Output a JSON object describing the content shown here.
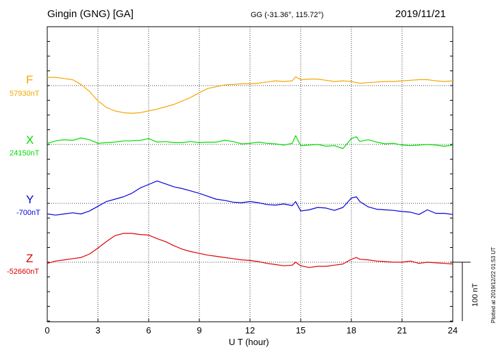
{
  "header": {
    "station": "Gingin (GNG)  [GA]",
    "coords": "GG (-31.36°, 115.72°)",
    "date": "2019/11/21"
  },
  "scale": {
    "label": "100 nT",
    "value_nT": 100
  },
  "plotted": "Plotted at 2019/12/22 01:53 UT",
  "chart_data": {
    "type": "line",
    "xlabel": "U T (hour)",
    "xlim": [
      0,
      24
    ],
    "xticks": [
      0,
      3,
      6,
      9,
      12,
      15,
      18,
      21,
      24
    ],
    "x": [
      0,
      0.5,
      1,
      1.5,
      2,
      2.5,
      3,
      3.5,
      4,
      4.5,
      5,
      5.5,
      6,
      6.5,
      7,
      7.5,
      8,
      8.5,
      9,
      9.5,
      10,
      10.5,
      11,
      11.5,
      12,
      12.5,
      13,
      13.5,
      14,
      14.5,
      14.7,
      15,
      15.5,
      16,
      16.5,
      17,
      17.5,
      18,
      18.3,
      18.5,
      19,
      19.5,
      20,
      20.5,
      21,
      21.5,
      22,
      22.5,
      23,
      23.5,
      24
    ],
    "series": [
      {
        "name": "F",
        "baseline_label": "57930nT",
        "baseline": 57930,
        "color": "#f5a500",
        "values": [
          57944,
          57944,
          57942,
          57940,
          57932,
          57920,
          57904,
          57893,
          57887,
          57884,
          57883,
          57884,
          57887,
          57890,
          57894,
          57898,
          57904,
          57910,
          57918,
          57925,
          57928,
          57931,
          57932,
          57933,
          57933,
          57934,
          57936,
          57938,
          57937,
          57938,
          57945,
          57940,
          57941,
          57941,
          57939,
          57937,
          57938,
          57937,
          57935,
          57934,
          57935,
          57936,
          57937,
          57937,
          57938,
          57939,
          57940,
          57940,
          57938,
          57937,
          57938
        ]
      },
      {
        "name": "X",
        "baseline_label": "24150nT",
        "baseline": 24150,
        "color": "#00dd00",
        "values": [
          24152,
          24156,
          24158,
          24157,
          24161,
          24158,
          24152,
          24153,
          24154,
          24156,
          24156,
          24157,
          24160,
          24154,
          24155,
          24153,
          24153,
          24155,
          24153,
          24154,
          24154,
          24157,
          24155,
          24151,
          24152,
          24154,
          24152,
          24151,
          24149,
          24152,
          24165,
          24148,
          24149,
          24150,
          24147,
          24148,
          24143,
          24160,
          24163,
          24155,
          24158,
          24154,
          24151,
          24152,
          24149,
          24148,
          24149,
          24150,
          24149,
          24147,
          24149
        ]
      },
      {
        "name": "Y",
        "baseline_label": "-700nT",
        "baseline": -700,
        "color": "#0000dd",
        "values": [
          -718,
          -720,
          -718,
          -716,
          -718,
          -713,
          -705,
          -697,
          -693,
          -689,
          -683,
          -674,
          -668,
          -662,
          -667,
          -672,
          -675,
          -679,
          -683,
          -688,
          -693,
          -695,
          -698,
          -699,
          -697,
          -699,
          -702,
          -703,
          -701,
          -704,
          -697,
          -713,
          -711,
          -707,
          -708,
          -712,
          -707,
          -691,
          -689,
          -697,
          -706,
          -710,
          -711,
          -712,
          -714,
          -715,
          -719,
          -711,
          -717,
          -717,
          -719
        ]
      },
      {
        "name": "Z",
        "baseline_label": "-52660nT",
        "baseline": -52660,
        "color": "#dd0000",
        "values": [
          -52662,
          -52658,
          -52656,
          -52654,
          -52652,
          -52646,
          -52636,
          -52625,
          -52615,
          -52611,
          -52611,
          -52613,
          -52614,
          -52620,
          -52625,
          -52632,
          -52638,
          -52642,
          -52645,
          -52648,
          -52650,
          -52652,
          -52654,
          -52656,
          -52657,
          -52659,
          -52662,
          -52664,
          -52666,
          -52665,
          -52660,
          -52666,
          -52669,
          -52667,
          -52667,
          -52665,
          -52663,
          -52655,
          -52652,
          -52655,
          -52656,
          -52658,
          -52659,
          -52660,
          -52660,
          -52658,
          -52662,
          -52660,
          -52661,
          -52662,
          -52663
        ]
      }
    ]
  }
}
